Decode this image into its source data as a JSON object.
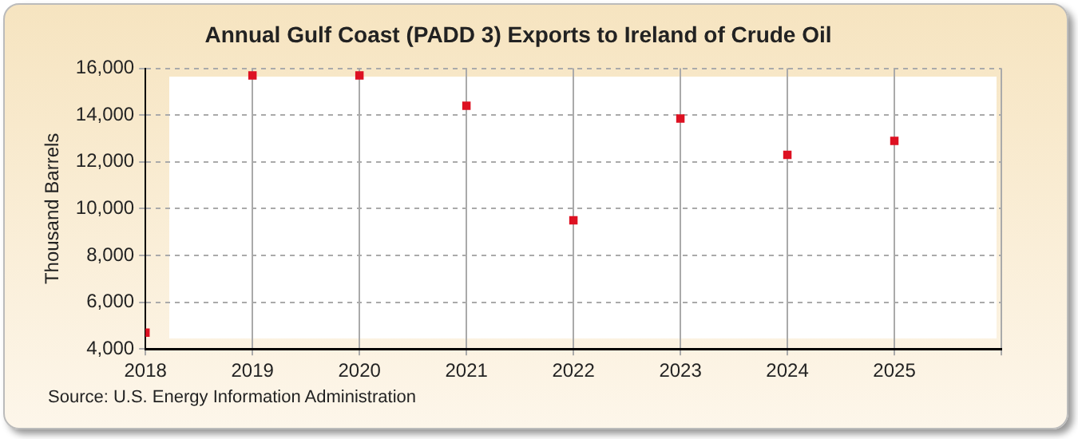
{
  "chart_data": {
    "type": "scatter",
    "title": "Annual Gulf Coast (PADD 3) Exports to Ireland of Crude Oil",
    "ylabel": "Thousand Barrels",
    "annotations": [
      "Source: U.S. Energy Information Administration"
    ],
    "x": [
      2018,
      2019,
      2020,
      2021,
      2022,
      2023,
      2024,
      2025
    ],
    "series": [
      {
        "color": "#dd1122",
        "values": [
          4700,
          15700,
          15700,
          14400,
          9500,
          13850,
          12300,
          12900
        ]
      }
    ],
    "xlim": [
      2018,
      2026
    ],
    "xticks": [
      2018,
      2019,
      2020,
      2021,
      2022,
      2023,
      2024,
      2025,
      {
        "value": 2026,
        "label": null
      }
    ],
    "ylim": [
      4000,
      16000
    ],
    "yticks": [
      {
        "value": 4000,
        "label": "4,000"
      },
      {
        "value": 6000,
        "label": "6,000"
      },
      {
        "value": 8000,
        "label": "8,000"
      },
      {
        "value": 10000,
        "label": "10,000"
      },
      {
        "value": 12000,
        "label": "12,000"
      },
      {
        "value": 14000,
        "label": "14,000"
      },
      {
        "value": 16000,
        "label": "16,000"
      }
    ],
    "grid": true,
    "marker": "square",
    "legend": false
  }
}
